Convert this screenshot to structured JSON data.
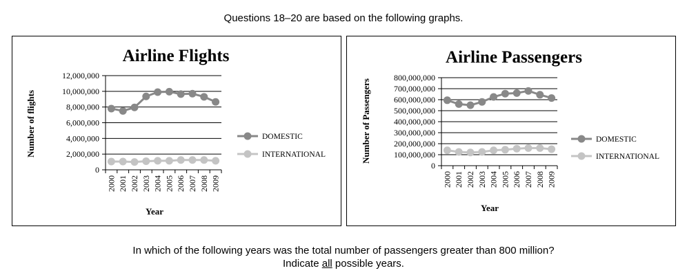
{
  "heading": "Questions 18–20 are based on the following graphs.",
  "question": {
    "line1": "In which of the following years was the total number of passengers greater than 800 million?",
    "line2_prefix": "Indicate ",
    "line2_emphasis": "all",
    "line2_suffix": " possible years."
  },
  "colors": {
    "domestic": "#888888",
    "international": "#c4c4c4",
    "axis": "#000000",
    "grid": "#000000"
  },
  "chart_data": [
    {
      "type": "line",
      "title": "Airline Flights",
      "xlabel": "Year",
      "ylabel": "Number of flights",
      "categories": [
        "2000",
        "2001",
        "2002",
        "2003",
        "2004",
        "2005",
        "2006",
        "2007",
        "2008",
        "2009"
      ],
      "ylim": [
        0,
        12000000
      ],
      "yticks": [
        "0",
        "2,000,000",
        "4,000,000",
        "6,000,000",
        "8,000,000",
        "10,000,000",
        "12,000,000"
      ],
      "grid": true,
      "legend_position": "right",
      "series": [
        {
          "name": "DOMESTIC",
          "values": [
            7800000,
            7500000,
            7950000,
            9350000,
            9900000,
            9950000,
            9650000,
            9700000,
            9300000,
            8650000
          ]
        },
        {
          "name": "INTERNATIONAL",
          "values": [
            1050000,
            1050000,
            1000000,
            1100000,
            1150000,
            1150000,
            1250000,
            1250000,
            1250000,
            1150000
          ]
        }
      ]
    },
    {
      "type": "line",
      "title": "Airline Passengers",
      "xlabel": "Year",
      "ylabel": "Number of Passengers",
      "categories": [
        "2000",
        "2001",
        "2002",
        "2003",
        "2004",
        "2005",
        "2006",
        "2007",
        "2008",
        "2009"
      ],
      "ylim": [
        0,
        800000000
      ],
      "yticks": [
        "0",
        "100,000,000",
        "200,000,000",
        "300,000,000",
        "400,000,000",
        "500,000,000",
        "600,000,000",
        "700,000,000",
        "800,000,000"
      ],
      "grid": true,
      "legend_position": "right",
      "series": [
        {
          "name": "DOMESTIC",
          "values": [
            595000000,
            560000000,
            550000000,
            580000000,
            625000000,
            655000000,
            660000000,
            680000000,
            645000000,
            615000000
          ]
        },
        {
          "name": "INTERNATIONAL",
          "values": [
            140000000,
            125000000,
            120000000,
            125000000,
            140000000,
            145000000,
            155000000,
            160000000,
            160000000,
            150000000
          ]
        }
      ]
    }
  ]
}
